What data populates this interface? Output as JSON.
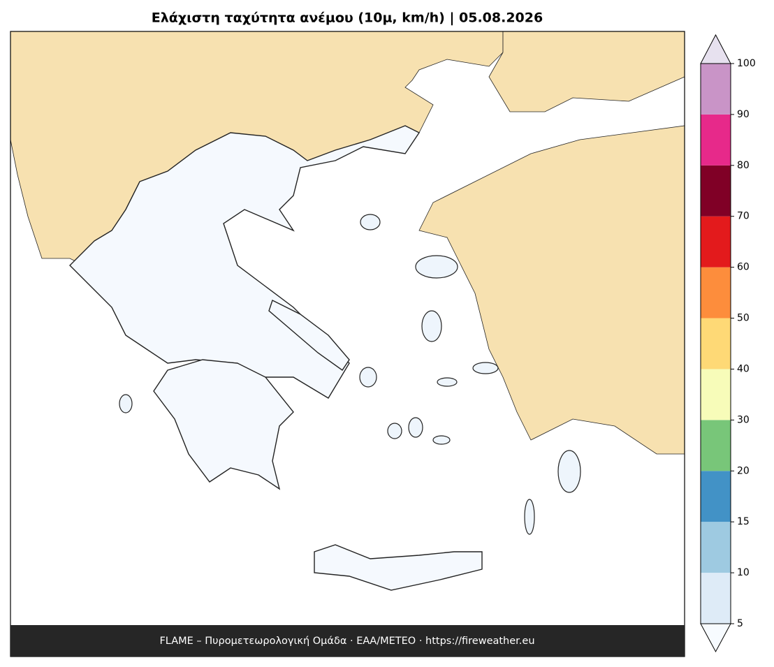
{
  "title": "Ελάχιστη ταχύτητα ανέμου (10μ, km/h)  |  05.08.2026",
  "footer": "FLAME – Πυρομετεωρολογική Ομάδα · ΕΑΑ/METEO · https://fireweather.eu",
  "colorbar": {
    "ticks": [
      5,
      10,
      15,
      20,
      30,
      40,
      50,
      60,
      70,
      80,
      90,
      100
    ],
    "colors": [
      "#deebf7",
      "#9ecae1",
      "#4292c6",
      "#78c679",
      "#f7fcb9",
      "#fed976",
      "#fd8d3c",
      "#e31a1c",
      "#800026",
      "#e7298a",
      "#c994c7"
    ],
    "extend_colors": {
      "below": "#f7fbff",
      "above": "#e7e1ef"
    }
  }
}
